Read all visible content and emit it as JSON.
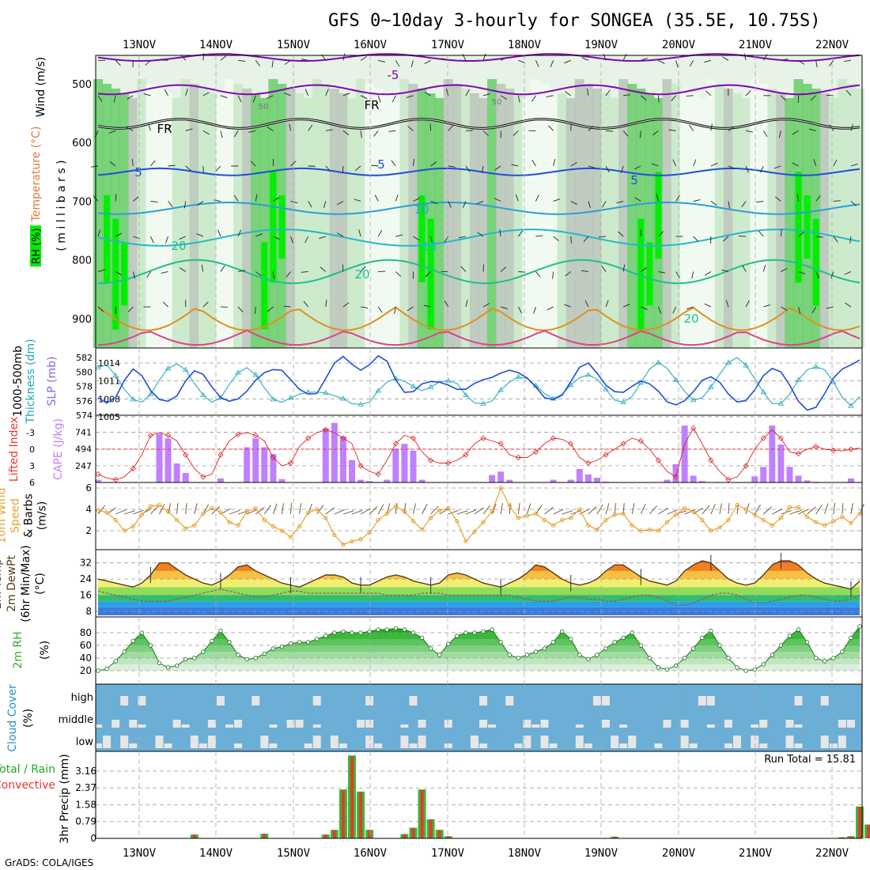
{
  "title": "GFS 0~10day 3-hourly for SONGEA (35.5E, 10.75S)",
  "dates": [
    "13NOV",
    "14NOV",
    "15NOV",
    "16NOV",
    "17NOV",
    "18NOV",
    "19NOV",
    "20NOV",
    "21NOV",
    "22NOV"
  ],
  "credit": "GrADS: COLA/IGES",
  "colors": {
    "green_bright": "#00ee00",
    "green_mid": "#66cc66",
    "green_light": "#c8e8c8",
    "grey": "#b8c4b8",
    "temp_purple": "#8800bb",
    "temp_blue": "#1f4fd6",
    "cape": "#c080ff",
    "cloud_blue": "#6baed6",
    "precip_green": "#33bb33",
    "precip_red": "#ee3333"
  },
  "chart_data": [
    {
      "id": "profile",
      "type": "heatmap",
      "ylabel": [
        "Wind (m/s)",
        "Temperature (°C)",
        "RH (%)",
        "( m i l l i b a r s )"
      ],
      "y_ticks": [
        500,
        600,
        700,
        800,
        900
      ],
      "contour_labels": [
        "-5",
        "FR",
        "FR",
        "5",
        "5",
        "5",
        "10",
        "15",
        "20",
        "20",
        "20",
        "50",
        "50"
      ]
    },
    {
      "id": "thickness_slp",
      "type": "line",
      "ylabel_left": [
        "1000-500mb",
        "Thickness (dm)"
      ],
      "ylabel_right": "SLP (mb)",
      "y_ticks_left": [
        "574",
        "576",
        "578",
        "580",
        "582"
      ],
      "y_ticks_right": [
        "1005",
        "1008",
        "1011",
        "1014"
      ],
      "series": [
        {
          "name": "Thickness",
          "values": [
            580.6,
            581.0,
            579.5,
            577.6,
            576.2,
            575.8,
            576.9,
            578.9,
            580.5,
            581.1,
            580.3,
            578.4,
            576.8,
            575.8,
            576.4,
            578.3,
            579.9,
            580.6,
            579.6,
            577.8,
            576.2,
            575.8,
            576.4,
            576.9,
            577.2,
            577.2,
            577.1,
            576.7,
            576.3,
            575.6,
            575.5,
            575.8,
            577.4,
            578.6,
            579.1,
            578.7,
            578.0,
            577.4,
            577.9,
            578.6,
            578.8,
            578.4,
            576.8,
            575.7,
            575.6,
            576.0,
            577.5,
            578.6,
            579.3,
            579.1,
            578.1,
            577.0,
            576.3,
            576.9,
            578.2,
            579.2,
            579.6,
            579.0,
            577.6,
            576.1,
            575.8,
            576.6,
            578.5,
            580.4,
            581.3,
            580.5,
            578.9,
            577.3,
            576.1,
            576.4,
            577.9,
            579.7,
            581.3,
            582.0,
            580.9,
            579.1,
            577.2,
            575.6,
            575.6,
            576.9,
            578.9,
            580.3,
            580.7,
            580.3,
            578.6,
            576.5,
            575.3,
            576.6
          ]
        },
        {
          "name": "SLP",
          "values": [
            1008.2,
            1007.3,
            1008.2,
            1011.1,
            1013.0,
            1011.9,
            1009.4,
            1007.9,
            1007.6,
            1008.5,
            1011.0,
            1012.7,
            1012.1,
            1010.0,
            1008.2,
            1007.6,
            1008.0,
            1009.3,
            1011.1,
            1012.4,
            1012.9,
            1012.8,
            1011.2,
            1009.6,
            1008.8,
            1008.9,
            1011.4,
            1014.0,
            1015.1,
            1013.8,
            1012.8,
            1013.7,
            1015.2,
            1014.3,
            1011.2,
            1009.1,
            1009.2,
            1010.5,
            1010.9,
            1010.8,
            1010.3,
            1009.6,
            1009.6,
            1010.6,
            1011.2,
            1011.6,
            1012.3,
            1012.8,
            1012.4,
            1011.5,
            1010.0,
            1008.2,
            1007.9,
            1008.6,
            1010.9,
            1013.3,
            1014.0,
            1012.3,
            1010.3,
            1009.2,
            1009.1,
            1010.1,
            1011.0,
            1010.5,
            1009.3,
            1007.5,
            1007.0,
            1007.7,
            1009.2,
            1011.1,
            1011.7,
            1010.8,
            1008.8,
            1007.5,
            1007.7,
            1009.5,
            1011.9,
            1013.1,
            1012.5,
            1010.3,
            1007.6,
            1006.1,
            1006.6,
            1008.9,
            1011.5,
            1013.0,
            1013.7,
            1014.5
          ]
        }
      ]
    },
    {
      "id": "cape_li",
      "type": "bar",
      "ylabel_left": "Lifted Index",
      "ylabel_right": "CAPE (J/kg)",
      "y_ticks_left": [
        "-3",
        "0",
        "3",
        "6"
      ],
      "y_ticks_right": [
        "247",
        "494",
        "741"
      ],
      "series": [
        {
          "name": "CAPE",
          "values": [
            40,
            0,
            0,
            0,
            0,
            0,
            0,
            720,
            650,
            280,
            140,
            0,
            0,
            0,
            60,
            0,
            0,
            520,
            650,
            520,
            420,
            50,
            0,
            0,
            0,
            0,
            800,
            880,
            680,
            330,
            40,
            20,
            0,
            40,
            500,
            570,
            470,
            40,
            0,
            0,
            0,
            0,
            0,
            0,
            0,
            110,
            160,
            40,
            0,
            0,
            0,
            0,
            40,
            0,
            40,
            200,
            120,
            70,
            10,
            0,
            0,
            0,
            0,
            0,
            0,
            40,
            270,
            840,
            100,
            20,
            0,
            0,
            0,
            0,
            0,
            90,
            230,
            840,
            560,
            230,
            100,
            30,
            10,
            0,
            0,
            0,
            60,
            0
          ]
        },
        {
          "name": "Lifted Index",
          "values": [
            4.5,
            5.2,
            5.5,
            5.0,
            3.5,
            1.0,
            -2.5,
            -3.0,
            -2.5,
            -1.5,
            1.0,
            3.5,
            5.0,
            4.5,
            1.0,
            -1.5,
            -2.7,
            -3.0,
            -2.5,
            -1.5,
            1.5,
            3.0,
            2.5,
            -0.5,
            -2.0,
            -3.0,
            -3.5,
            -3.0,
            -2.0,
            -1.0,
            3.0,
            4.0,
            4.5,
            2.0,
            -1.0,
            -2.5,
            -2.0,
            0.5,
            2.0,
            2.5,
            2.5,
            2.0,
            1.0,
            -1.0,
            -2.0,
            -1.5,
            -1.0,
            1.0,
            1.5,
            1.5,
            0.5,
            -1.0,
            -2.0,
            -1.8,
            -1.0,
            1.5,
            2.5,
            2.0,
            1.0,
            0.0,
            -1.0,
            -2.0,
            -1.5,
            0.0,
            2.0,
            4.0,
            5.0,
            -1.0,
            -3.8,
            -1.0,
            2.0,
            4.0,
            5.5,
            5.0,
            3.0,
            0.0,
            -2.0,
            -3.5,
            -2.0,
            0.5,
            0.8,
            0.0,
            -0.5,
            0.0,
            0.2,
            0.3,
            0.0,
            -0.2
          ]
        }
      ]
    },
    {
      "id": "wind10m",
      "type": "line",
      "ylabel": [
        "10m Wind",
        "Speed",
        "& Barbs",
        "(m/s)"
      ],
      "y_ticks": [
        "2",
        "4",
        "6"
      ],
      "series": [
        {
          "name": "Speed",
          "values": [
            3.9,
            3.7,
            3.0,
            2.0,
            2.4,
            3.5,
            4.3,
            4.4,
            3.8,
            3.0,
            2.2,
            2.5,
            3.6,
            4.1,
            3.7,
            2.8,
            2.5,
            3.8,
            4.1,
            3.0,
            2.4,
            2.0,
            1.4,
            2.4,
            3.7,
            4.0,
            3.2,
            1.6,
            0.7,
            1.0,
            1.2,
            1.8,
            3.0,
            3.6,
            4.3,
            3.8,
            2.9,
            2.1,
            3.2,
            3.9,
            4.1,
            2.9,
            1.0,
            1.9,
            2.8,
            3.8,
            6.0,
            4.3,
            3.2,
            3.4,
            3.6,
            3.0,
            2.5,
            3.0,
            3.2,
            4.0,
            2.5,
            2.1,
            3.0,
            3.5,
            3.6,
            2.5,
            2.0,
            2.1,
            2.0,
            2.8,
            3.5,
            4.1,
            3.8,
            3.0,
            2.0,
            2.3,
            3.0,
            4.4,
            4.0,
            3.5,
            3.0,
            2.5,
            3.2,
            4.2,
            4.2,
            3.3,
            2.8,
            2.5,
            2.9,
            3.3,
            2.7,
            3.6
          ]
        }
      ]
    },
    {
      "id": "temp2m",
      "type": "area",
      "ylabel": [
        "2m Temp",
        "2m DewPt",
        "(6hr Min/Max)",
        "(°C)"
      ],
      "y_ticks": [
        "8",
        "16",
        "24",
        "32"
      ],
      "series": [
        {
          "name": "Temp",
          "values": [
            24,
            23,
            22,
            21,
            20,
            22,
            26,
            32,
            32,
            29,
            26,
            24,
            22,
            21,
            23,
            26,
            30,
            31,
            28,
            26,
            24,
            22,
            21,
            20,
            22,
            24,
            26,
            26,
            25,
            22,
            21,
            21,
            23,
            25,
            26,
            25,
            23,
            22,
            21,
            22,
            26,
            27,
            26,
            24,
            22,
            21,
            20,
            22,
            24,
            27,
            31,
            30,
            27,
            24,
            22,
            21,
            22,
            24,
            28,
            31,
            31,
            28,
            25,
            23,
            22,
            21,
            23,
            28,
            31,
            33,
            32,
            28,
            24,
            22,
            21,
            22,
            26,
            31,
            33,
            33,
            31,
            27,
            24,
            22,
            21,
            20,
            19,
            23
          ]
        },
        {
          "name": "DewPt",
          "values": [
            18,
            17,
            16,
            15,
            14,
            13,
            13,
            13,
            13,
            14,
            15,
            16,
            17,
            18,
            19,
            18,
            17,
            16,
            15,
            15,
            16,
            17,
            18,
            18,
            17,
            17,
            17,
            17,
            17,
            17,
            17,
            17,
            17,
            16,
            16,
            16,
            16,
            17,
            17,
            17,
            16,
            16,
            16,
            16,
            16,
            16,
            16,
            16,
            15,
            14,
            13,
            13,
            13,
            14,
            15,
            15,
            14,
            14,
            13,
            13,
            14,
            15,
            16,
            16,
            15,
            13,
            11,
            11,
            12,
            14,
            16,
            17,
            17,
            16,
            14,
            12,
            12,
            13,
            14,
            15,
            16,
            16,
            15,
            14,
            13,
            13,
            14,
            16
          ]
        }
      ]
    },
    {
      "id": "rh2m",
      "type": "area",
      "ylabel": [
        "2m RH",
        "(%)"
      ],
      "y_ticks": [
        "20",
        "40",
        "60",
        "80"
      ],
      "series": [
        {
          "name": "RH",
          "values": [
            20,
            23,
            35,
            50,
            67,
            80,
            60,
            32,
            25,
            28,
            38,
            40,
            50,
            67,
            83,
            65,
            45,
            38,
            40,
            47,
            55,
            58,
            63,
            65,
            65,
            70,
            75,
            80,
            82,
            80,
            80,
            82,
            85,
            85,
            87,
            85,
            80,
            72,
            55,
            45,
            62,
            75,
            80,
            80,
            82,
            85,
            65,
            45,
            40,
            45,
            50,
            55,
            65,
            82,
            70,
            45,
            38,
            45,
            55,
            65,
            72,
            80,
            60,
            40,
            25,
            22,
            28,
            40,
            55,
            72,
            83,
            60,
            40,
            25,
            20,
            22,
            30,
            45,
            60,
            75,
            85,
            65,
            40,
            35,
            40,
            50,
            72,
            90
          ]
        }
      ]
    },
    {
      "id": "cloud",
      "type": "heatmap",
      "ylabel": [
        "Cloud Cover",
        "(%)"
      ],
      "rows": [
        "high",
        "middle",
        "low"
      ]
    },
    {
      "id": "precip",
      "type": "bar",
      "ylabel_left": [
        "Total / Rain",
        "Convective"
      ],
      "ylabel": "3hr Precip (mm)",
      "y_ticks": [
        "0",
        "0.79",
        "1.58",
        "2.37",
        "3.16"
      ],
      "annotation": "Run Total = 15.81",
      "series": [
        {
          "name": "Total / Rain",
          "values": [
            0,
            0,
            0,
            0,
            0,
            0,
            0,
            0,
            0,
            0,
            0,
            0.18,
            0,
            0,
            0,
            0,
            0,
            0,
            0,
            0.22,
            0,
            0,
            0,
            0,
            0,
            0,
            0.18,
            0.4,
            2.3,
            3.9,
            2.2,
            0.4,
            0,
            0,
            0,
            0.2,
            0.5,
            2.3,
            0.9,
            0.4,
            0.1,
            0,
            0,
            0,
            0,
            0,
            0,
            0,
            0,
            0,
            0,
            0,
            0,
            0,
            0,
            0,
            0,
            0,
            0,
            0.08,
            0,
            0,
            0,
            0,
            0,
            0,
            0,
            0,
            0,
            0,
            0,
            0,
            0,
            0,
            0,
            0,
            0,
            0,
            0,
            0,
            0,
            0,
            0,
            0,
            0,
            0.05,
            0.1,
            1.5,
            0.65
          ]
        }
      ]
    }
  ]
}
